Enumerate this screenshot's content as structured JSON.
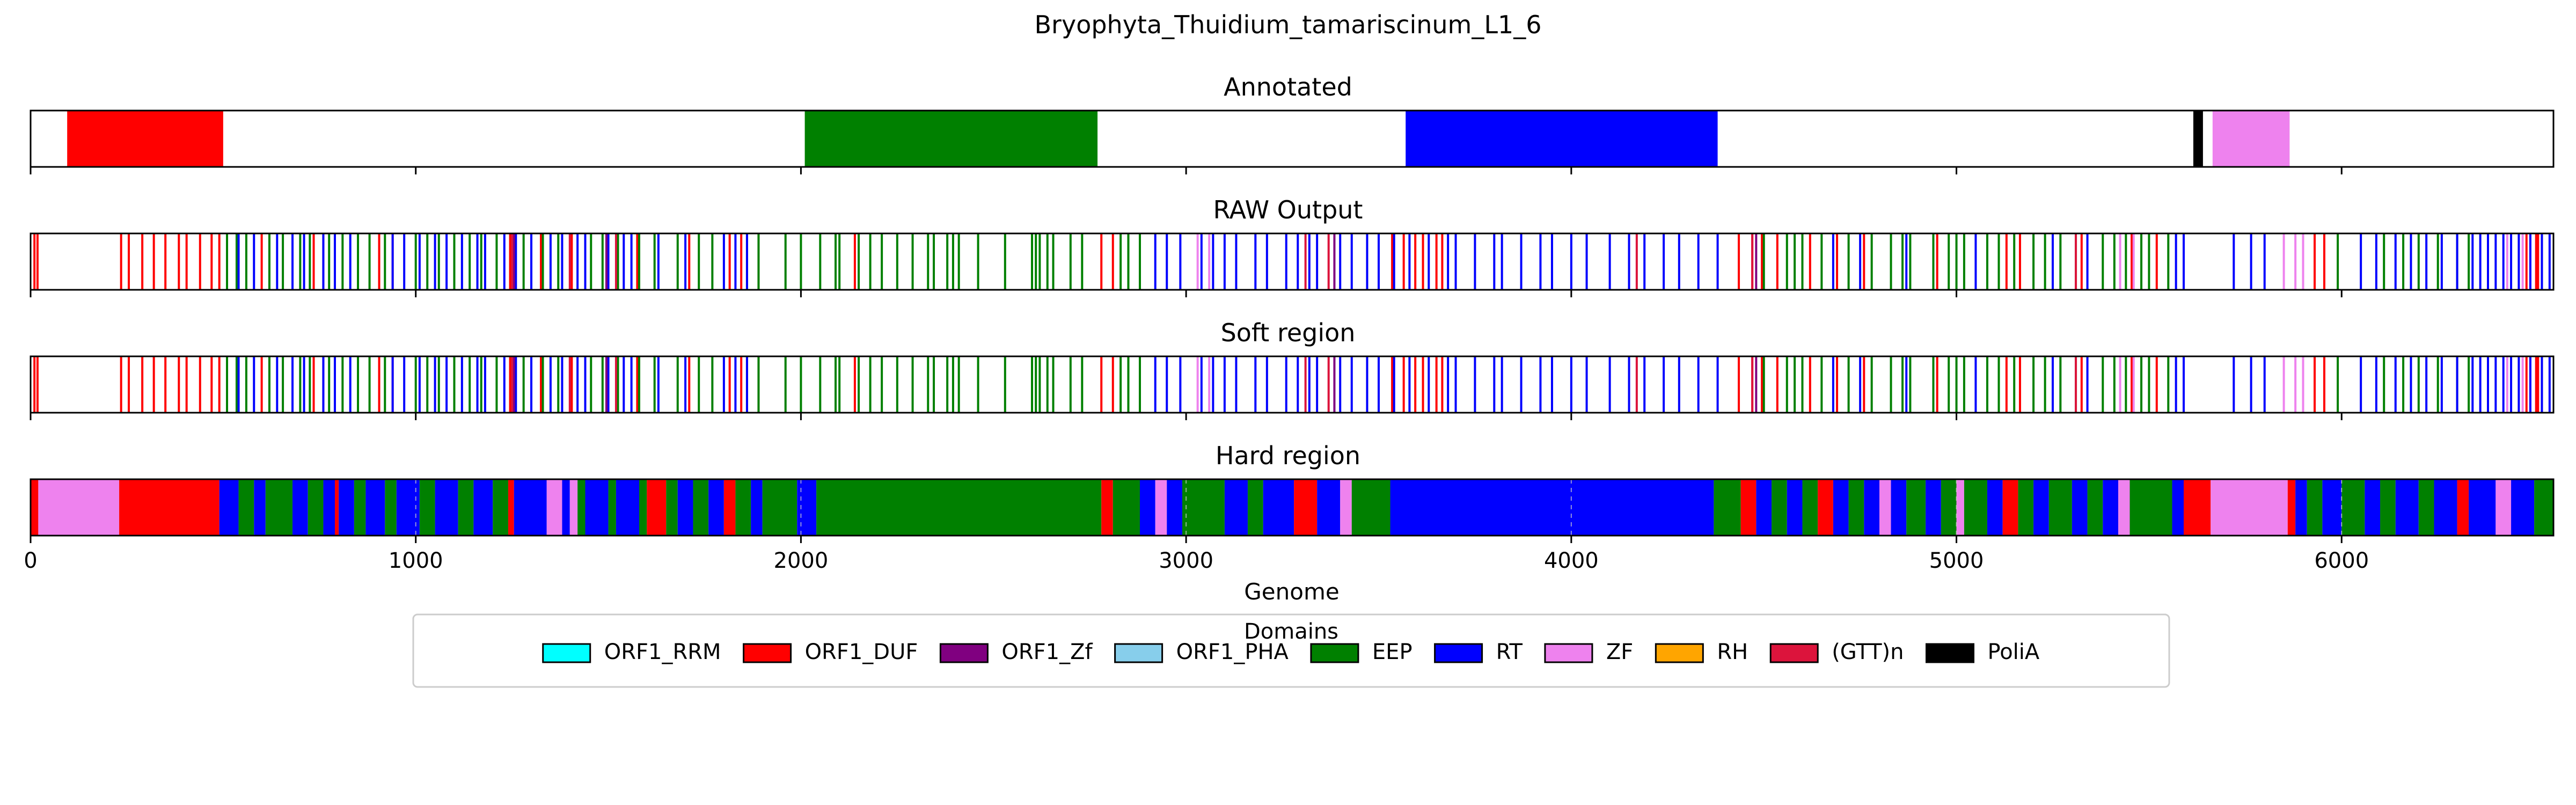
{
  "chart_data": {
    "type": "genome-track",
    "title": "Bryophyta_Thuidium_tamariscinum_L1_6",
    "xlabel": "Genome",
    "xlim": [
      0,
      6550
    ],
    "xticks": [
      0,
      1000,
      2000,
      3000,
      4000,
      5000,
      6000
    ],
    "colors": {
      "ORF1_RRM": "#00ffff",
      "ORF1_DUF": "#ff0000",
      "ORF1_Zf": "#800080",
      "ORF1_PHA": "#87ceeb",
      "EEP": "#008000",
      "RT": "#0000ff",
      "ZF": "#ee82ee",
      "RH": "#ffa500",
      "(GTT)n": "#dc143c",
      "PoliA": "#000000"
    },
    "legend": {
      "title": "Domains",
      "placement": "bottom-center",
      "entries": [
        "ORF1_RRM",
        "ORF1_DUF",
        "ORF1_Zf",
        "ORF1_PHA",
        "EEP",
        "RT",
        "ZF",
        "RH",
        "(GTT)n",
        "PoliA"
      ]
    },
    "panels": [
      {
        "title": "Annotated",
        "segments": [
          {
            "domain": "ORF1_DUF",
            "start": 95,
            "end": 500
          },
          {
            "domain": "EEP",
            "start": 2010,
            "end": 2770
          },
          {
            "domain": "RT",
            "start": 3570,
            "end": 4380
          },
          {
            "domain": "PoliA",
            "start": 5615,
            "end": 5640
          },
          {
            "domain": "ZF",
            "start": 5665,
            "end": 5865
          }
        ]
      },
      {
        "title": "RAW Output",
        "mode": "lines",
        "lines": [
          {
            "domain": "ORF1_DUF",
            "positions": [
              10,
              18,
              235,
              255,
              290,
              320,
              350,
              385,
              405,
              440,
              470,
              490,
              600,
              735,
              760,
              790,
              905,
              940,
              1245,
              1325,
              1405,
              1575,
              1710,
              1815,
              1845,
              1860,
              1890,
              2140,
              2780,
              2810,
              3535,
              3565,
              3595,
              3615,
              3650,
              3665,
              4435,
              4470,
              4495,
              4535,
              4620,
              4690,
              4760,
              4950,
              5130,
              5165,
              5325,
              5455,
              5520,
              5930,
              5955,
              6480,
              6505,
              6510
            ]
          },
          {
            "domain": "EEP",
            "positions": [
              510,
              535,
              560,
              620,
              655,
              700,
              725,
              775,
              810,
              850,
              880,
              920,
              1000,
              1030,
              1060,
              1100,
              1140,
              1170,
              1210,
              1280,
              1330,
              1370,
              1455,
              1485,
              1525,
              1580,
              1620,
              1680,
              1735,
              1770,
              1890,
              1960,
              2000,
              2050,
              2090,
              2100,
              2150,
              2180,
              2210,
              2250,
              2290,
              2330,
              2345,
              2380,
              2395,
              2410,
              2460,
              2530,
              2600,
              2610,
              2620,
              2640,
              2655,
              2700,
              2730,
              2830,
              2850,
              2880,
              4500,
              4560,
              4580,
              4600,
              4650,
              4720,
              4780,
              4830,
              4860,
              4880,
              4940,
              4980,
              5000,
              5020,
              5080,
              5110,
              5150,
              5200,
              5230,
              5270,
              5310,
              5380,
              5410,
              5440,
              5480,
              5500,
              5550,
              5990,
              6110,
              6160,
              6200,
              6250,
              6300,
              6330
            ]
          },
          {
            "domain": "RT",
            "positions": [
              540,
              580,
              640,
              680,
              710,
              760,
              790,
              830,
              940,
              970,
              1010,
              1050,
              1080,
              1120,
              1160,
              1180,
              1230,
              1260,
              1300,
              1350,
              1380,
              1420,
              1440,
              1500,
              1540,
              1560,
              1630,
              1700,
              1800,
              1830,
              1860,
              2920,
              2950,
              2985,
              3040,
              3070,
              3100,
              3130,
              3180,
              3210,
              3260,
              3290,
              3320,
              3340,
              3400,
              3430,
              3470,
              3500,
              3540,
              3580,
              3630,
              3680,
              3700,
              3750,
              3800,
              3820,
              3870,
              3920,
              3950,
              4000,
              4040,
              4100,
              4150,
              4190,
              4240,
              4280,
              4330,
              4380,
              4680,
              4750,
              4870,
              5050,
              5250,
              5340,
              5570,
              5590,
              5720,
              5765,
              5800,
              6050,
              6090,
              6140,
              6180,
              6220,
              6260,
              6300,
              6340,
              6360,
              6380,
              6400,
              6420,
              6440,
              6460,
              6490,
              6520,
              6540
            ]
          },
          {
            "domain": "ZF",
            "positions": [
              3030,
              3060,
              5425,
              5460,
              5850,
              5880,
              5900,
              6430,
              6470
            ]
          },
          {
            "domain": "ORF1_Zf",
            "positions": [
              1255,
              1495,
              3385,
              4480
            ]
          },
          {
            "domain": "(GTT)n",
            "positions": [
              1250,
              1400,
              1520,
              3310,
              3370,
              4170,
              4470,
              5310
            ]
          }
        ]
      },
      {
        "title": "Soft region",
        "mode": "lines",
        "copy_of": "RAW Output"
      },
      {
        "title": "Hard region",
        "segments": [
          {
            "domain": "ORF1_DUF",
            "start": 0,
            "end": 20
          },
          {
            "domain": "ZF",
            "start": 20,
            "end": 230
          },
          {
            "domain": "ORF1_DUF",
            "start": 230,
            "end": 490
          },
          {
            "domain": "RT",
            "start": 490,
            "end": 540
          },
          {
            "domain": "EEP",
            "start": 540,
            "end": 580
          },
          {
            "domain": "RT",
            "start": 580,
            "end": 610
          },
          {
            "domain": "EEP",
            "start": 610,
            "end": 680
          },
          {
            "domain": "RT",
            "start": 680,
            "end": 720
          },
          {
            "domain": "EEP",
            "start": 720,
            "end": 760
          },
          {
            "domain": "RT",
            "start": 760,
            "end": 790
          },
          {
            "domain": "ORF1_DUF",
            "start": 790,
            "end": 800
          },
          {
            "domain": "RT",
            "start": 800,
            "end": 840
          },
          {
            "domain": "EEP",
            "start": 840,
            "end": 870
          },
          {
            "domain": "RT",
            "start": 870,
            "end": 920
          },
          {
            "domain": "EEP",
            "start": 920,
            "end": 950
          },
          {
            "domain": "RT",
            "start": 950,
            "end": 1010
          },
          {
            "domain": "EEP",
            "start": 1010,
            "end": 1050
          },
          {
            "domain": "RT",
            "start": 1050,
            "end": 1110
          },
          {
            "domain": "EEP",
            "start": 1110,
            "end": 1150
          },
          {
            "domain": "RT",
            "start": 1150,
            "end": 1200
          },
          {
            "domain": "EEP",
            "start": 1200,
            "end": 1240
          },
          {
            "domain": "ORF1_DUF",
            "start": 1240,
            "end": 1255
          },
          {
            "domain": "RT",
            "start": 1255,
            "end": 1340
          },
          {
            "domain": "ZF",
            "start": 1340,
            "end": 1380
          },
          {
            "domain": "RT",
            "start": 1380,
            "end": 1400
          },
          {
            "domain": "ZF",
            "start": 1400,
            "end": 1420
          },
          {
            "domain": "EEP",
            "start": 1420,
            "end": 1440
          },
          {
            "domain": "RT",
            "start": 1440,
            "end": 1500
          },
          {
            "domain": "EEP",
            "start": 1500,
            "end": 1520
          },
          {
            "domain": "RT",
            "start": 1520,
            "end": 1580
          },
          {
            "domain": "EEP",
            "start": 1580,
            "end": 1600
          },
          {
            "domain": "ORF1_DUF",
            "start": 1600,
            "end": 1650
          },
          {
            "domain": "EEP",
            "start": 1650,
            "end": 1680
          },
          {
            "domain": "RT",
            "start": 1680,
            "end": 1720
          },
          {
            "domain": "EEP",
            "start": 1720,
            "end": 1760
          },
          {
            "domain": "RT",
            "start": 1760,
            "end": 1800
          },
          {
            "domain": "ORF1_DUF",
            "start": 1800,
            "end": 1830
          },
          {
            "domain": "EEP",
            "start": 1830,
            "end": 1870
          },
          {
            "domain": "RT",
            "start": 1870,
            "end": 1900
          },
          {
            "domain": "EEP",
            "start": 1900,
            "end": 1990
          },
          {
            "domain": "RT",
            "start": 1990,
            "end": 2040
          },
          {
            "domain": "EEP",
            "start": 2040,
            "end": 2780
          },
          {
            "domain": "ORF1_DUF",
            "start": 2780,
            "end": 2810
          },
          {
            "domain": "EEP",
            "start": 2810,
            "end": 2880
          },
          {
            "domain": "RT",
            "start": 2880,
            "end": 2920
          },
          {
            "domain": "ZF",
            "start": 2920,
            "end": 2950
          },
          {
            "domain": "RT",
            "start": 2950,
            "end": 2990
          },
          {
            "domain": "EEP",
            "start": 2990,
            "end": 3100
          },
          {
            "domain": "RT",
            "start": 3100,
            "end": 3160
          },
          {
            "domain": "EEP",
            "start": 3160,
            "end": 3200
          },
          {
            "domain": "RT",
            "start": 3200,
            "end": 3280
          },
          {
            "domain": "ORF1_DUF",
            "start": 3280,
            "end": 3340
          },
          {
            "domain": "RT",
            "start": 3340,
            "end": 3400
          },
          {
            "domain": "ZF",
            "start": 3400,
            "end": 3430
          },
          {
            "domain": "EEP",
            "start": 3430,
            "end": 3530
          },
          {
            "domain": "RT",
            "start": 3530,
            "end": 4370
          },
          {
            "domain": "EEP",
            "start": 4370,
            "end": 4440
          },
          {
            "domain": "ORF1_DUF",
            "start": 4440,
            "end": 4480
          },
          {
            "domain": "RT",
            "start": 4480,
            "end": 4520
          },
          {
            "domain": "EEP",
            "start": 4520,
            "end": 4560
          },
          {
            "domain": "RT",
            "start": 4560,
            "end": 4600
          },
          {
            "domain": "EEP",
            "start": 4600,
            "end": 4640
          },
          {
            "domain": "ORF1_DUF",
            "start": 4640,
            "end": 4680
          },
          {
            "domain": "RT",
            "start": 4680,
            "end": 4720
          },
          {
            "domain": "EEP",
            "start": 4720,
            "end": 4760
          },
          {
            "domain": "RT",
            "start": 4760,
            "end": 4800
          },
          {
            "domain": "ZF",
            "start": 4800,
            "end": 4830
          },
          {
            "domain": "RT",
            "start": 4830,
            "end": 4870
          },
          {
            "domain": "EEP",
            "start": 4870,
            "end": 4920
          },
          {
            "domain": "RT",
            "start": 4920,
            "end": 4960
          },
          {
            "domain": "EEP",
            "start": 4960,
            "end": 5000
          },
          {
            "domain": "ZF",
            "start": 5000,
            "end": 5020
          },
          {
            "domain": "EEP",
            "start": 5020,
            "end": 5080
          },
          {
            "domain": "RT",
            "start": 5080,
            "end": 5120
          },
          {
            "domain": "ORF1_DUF",
            "start": 5120,
            "end": 5160
          },
          {
            "domain": "EEP",
            "start": 5160,
            "end": 5200
          },
          {
            "domain": "RT",
            "start": 5200,
            "end": 5240
          },
          {
            "domain": "EEP",
            "start": 5240,
            "end": 5300
          },
          {
            "domain": "RT",
            "start": 5300,
            "end": 5340
          },
          {
            "domain": "EEP",
            "start": 5340,
            "end": 5380
          },
          {
            "domain": "RT",
            "start": 5380,
            "end": 5420
          },
          {
            "domain": "ZF",
            "start": 5420,
            "end": 5450
          },
          {
            "domain": "EEP",
            "start": 5450,
            "end": 5560
          },
          {
            "domain": "RT",
            "start": 5560,
            "end": 5590
          },
          {
            "domain": "ORF1_DUF",
            "start": 5590,
            "end": 5660
          },
          {
            "domain": "ZF",
            "start": 5660,
            "end": 5860
          },
          {
            "domain": "ORF1_DUF",
            "start": 5860,
            "end": 5880
          },
          {
            "domain": "RT",
            "start": 5880,
            "end": 5910
          },
          {
            "domain": "EEP",
            "start": 5910,
            "end": 5950
          },
          {
            "domain": "RT",
            "start": 5950,
            "end": 6000
          },
          {
            "domain": "EEP",
            "start": 6000,
            "end": 6060
          },
          {
            "domain": "RT",
            "start": 6060,
            "end": 6100
          },
          {
            "domain": "EEP",
            "start": 6100,
            "end": 6140
          },
          {
            "domain": "RT",
            "start": 6140,
            "end": 6200
          },
          {
            "domain": "EEP",
            "start": 6200,
            "end": 6240
          },
          {
            "domain": "RT",
            "start": 6240,
            "end": 6300
          },
          {
            "domain": "ORF1_DUF",
            "start": 6300,
            "end": 6330
          },
          {
            "domain": "RT",
            "start": 6330,
            "end": 6400
          },
          {
            "domain": "ZF",
            "start": 6400,
            "end": 6440
          },
          {
            "domain": "RT",
            "start": 6440,
            "end": 6500
          },
          {
            "domain": "EEP",
            "start": 6500,
            "end": 6550
          }
        ]
      }
    ]
  }
}
